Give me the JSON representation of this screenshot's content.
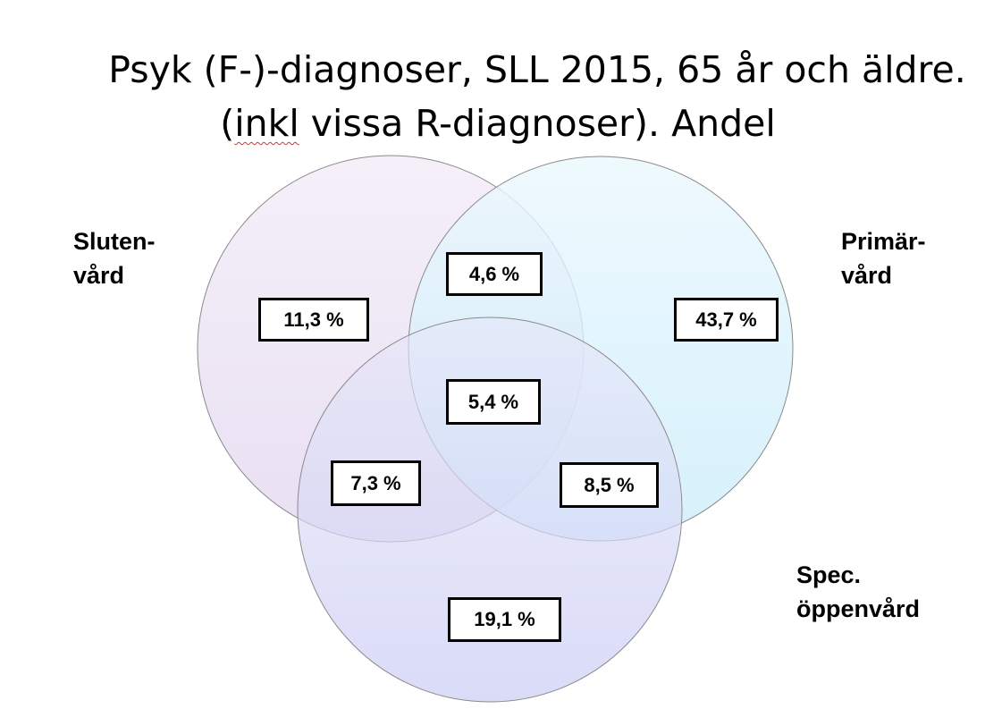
{
  "title": {
    "line1": "Psyk (F-)-diagnoser, SLL 2015, 65 år och äldre.",
    "line2_pre": "(",
    "line2_underlined": "inkl",
    "line2_post": " vissa R-diagnoser). Andel"
  },
  "sets": {
    "sluten": {
      "line1": "Sluten-",
      "line2": "vård",
      "color": "#e6dcf0"
    },
    "primar": {
      "line1": "Primär-",
      "line2": "vård",
      "color": "#c9ecfb"
    },
    "spec": {
      "line1": "Spec.",
      "line2": "öppenvård",
      "color": "#cccdf4"
    }
  },
  "regions": {
    "sluten_only": "11,3 %",
    "primar_only": "43,7 %",
    "spec_only": "19,1 %",
    "sluten_primar": "4,6 %",
    "sluten_spec": "7,3 %",
    "primar_spec": "8,5 %",
    "all_three": "5,4 %"
  }
}
